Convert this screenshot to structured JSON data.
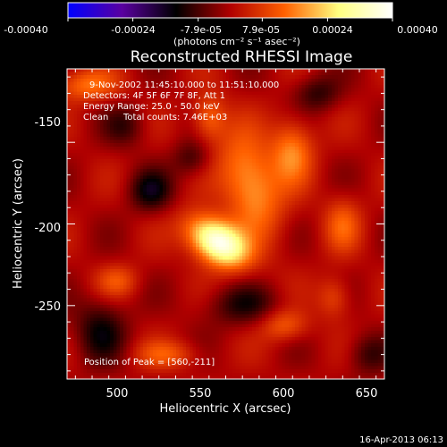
{
  "chart_data": {
    "type": "heatmap",
    "title": "Reconstructed RHESSI Image",
    "xlabel": "Heliocentric X (arcsec)",
    "ylabel": "Heliocentric Y (arcsec)",
    "xlim": [
      470,
      660
    ],
    "ylim": [
      -295,
      -105
    ],
    "x_ticks": [
      500,
      550,
      600,
      650
    ],
    "y_ticks": [
      -150,
      -200,
      -250
    ],
    "colorbar": {
      "range": [
        -0.0004,
        0.0004
      ],
      "tick_labels": [
        "-0.00040",
        "-0.00024",
        "-7.9e-05",
        "7.9e-05",
        "0.00024",
        "0.00040"
      ],
      "units": "(photons cm⁻² s⁻¹ asec⁻²)",
      "colors": [
        "#0000ff",
        "#5a00a0",
        "#000000",
        "#b00000",
        "#ff6000",
        "#ffff80",
        "#ffffff"
      ]
    },
    "annotations": {
      "time": "9-Nov-2002 11:45:10.000 to 11:51:10.000",
      "detectors": "Detectors: 4F 5F 6F 7F 8F, Att 1",
      "energy": "Energy Range: 25.0 - 50.0 keV",
      "clean": "Clean",
      "counts": "Total counts: 7.46E+03",
      "peak": "Position of Peak = [560,-211]"
    },
    "peak": {
      "x": 560,
      "y": -211
    },
    "sources": [
      {
        "x": 560,
        "y": -211,
        "amp": 0.0004,
        "sx": 14,
        "sy": 9,
        "rot": -0.6
      },
      {
        "x": 580,
        "y": -175,
        "amp": 0.0002,
        "sx": 12,
        "sy": 22,
        "rot": 0.3
      },
      {
        "x": 605,
        "y": -155,
        "amp": 0.00016,
        "sx": 9,
        "sy": 14,
        "rot": 0
      },
      {
        "x": 482,
        "y": -115,
        "amp": 0.00014,
        "sx": 13,
        "sy": 7,
        "rot": 0
      },
      {
        "x": 555,
        "y": -135,
        "amp": 0.00013,
        "sx": 7,
        "sy": 10,
        "rot": 0
      },
      {
        "x": 635,
        "y": -200,
        "amp": 0.00011,
        "sx": 8,
        "sy": 12,
        "rot": 0
      },
      {
        "x": 600,
        "y": -262,
        "amp": 0.00012,
        "sx": 10,
        "sy": 7,
        "rot": 0
      },
      {
        "x": 530,
        "y": -280,
        "amp": 0.0001,
        "sx": 14,
        "sy": 6,
        "rot": 0
      },
      {
        "x": 500,
        "y": -235,
        "amp": 0.0001,
        "sx": 9,
        "sy": 7,
        "rot": 0
      },
      {
        "x": 630,
        "y": -245,
        "amp": 0.0001,
        "sx": 7,
        "sy": 9,
        "rot": 0
      },
      {
        "x": 520,
        "y": -180,
        "amp": -0.00013,
        "sx": 9,
        "sy": 9,
        "rot": 0
      },
      {
        "x": 490,
        "y": -265,
        "amp": -0.00012,
        "sx": 11,
        "sy": 14,
        "rot": 0
      },
      {
        "x": 575,
        "y": -250,
        "amp": -0.0001,
        "sx": 16,
        "sy": 9,
        "rot": 0
      },
      {
        "x": 620,
        "y": -120,
        "amp": -0.0001,
        "sx": 10,
        "sy": 8,
        "rot": 0
      },
      {
        "x": 545,
        "y": -160,
        "amp": -9e-05,
        "sx": 8,
        "sy": 8,
        "rot": 0
      },
      {
        "x": 650,
        "y": -280,
        "amp": -9e-05,
        "sx": 9,
        "sy": 9,
        "rot": 0
      },
      {
        "x": 505,
        "y": -140,
        "amp": -8e-05,
        "sx": 9,
        "sy": 9,
        "rot": 0
      }
    ]
  },
  "footer": {
    "timestamp": "16-Apr-2013 06:13"
  }
}
